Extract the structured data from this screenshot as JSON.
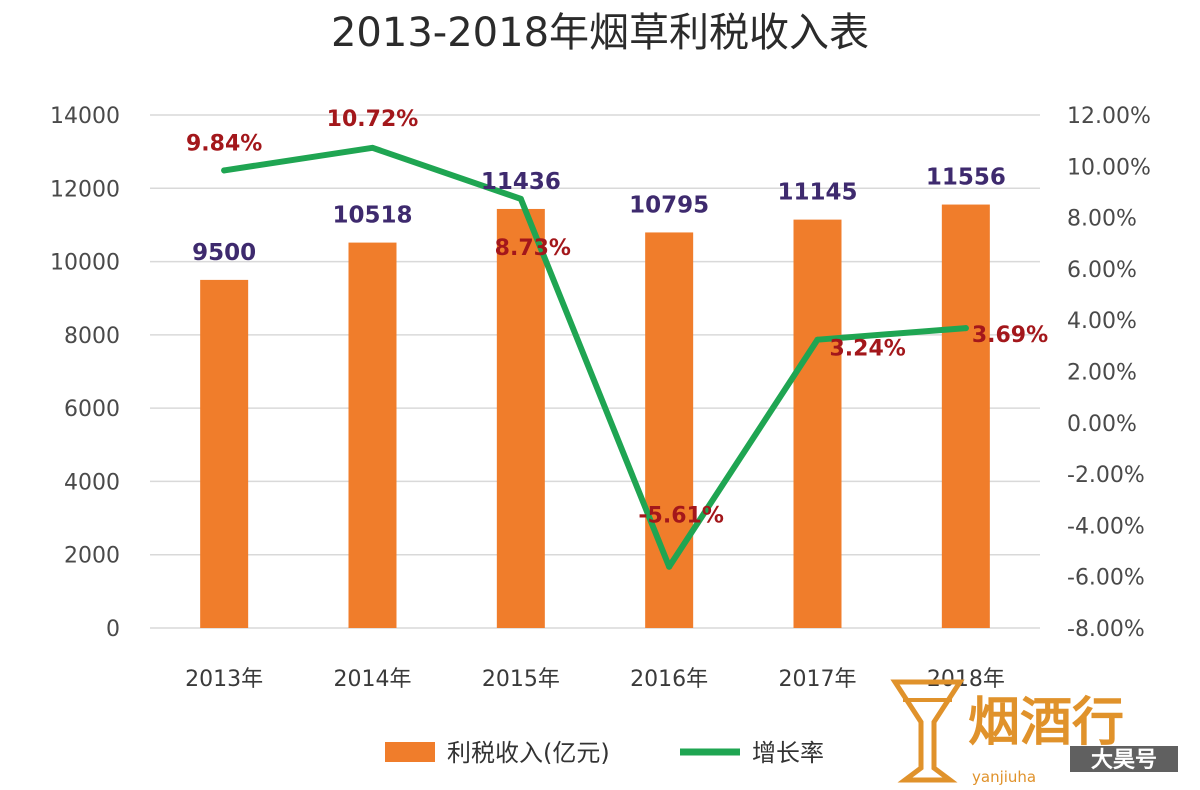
{
  "chart_data": {
    "type": "bar",
    "title": "2013-2018年烟草利税收入表",
    "categories": [
      "2013年",
      "2014年",
      "2015年",
      "2016年",
      "2017年",
      "2018年"
    ],
    "series": [
      {
        "name": "利税收入(亿元)",
        "type": "bar",
        "axis": "left",
        "color": "#f07d2b",
        "values": [
          9500,
          10518,
          11436,
          10795,
          11145,
          11556
        ],
        "labels": [
          "9500",
          "10518",
          "11436",
          "10795",
          "11145",
          "11556"
        ]
      },
      {
        "name": "增长率",
        "type": "line",
        "axis": "right",
        "color": "#1fa552",
        "values": [
          9.84,
          10.72,
          8.73,
          -5.61,
          3.24,
          3.69
        ],
        "labels": [
          "9.84%",
          "10.72%",
          "8.73%",
          "-5.61%",
          "3.24%",
          "3.69%"
        ]
      }
    ],
    "y_left": {
      "ylim": [
        0,
        14000
      ],
      "ticks": [
        "0",
        "2000",
        "4000",
        "6000",
        "8000",
        "10000",
        "12000",
        "14000"
      ]
    },
    "y_right": {
      "ylim": [
        -8,
        12
      ],
      "ticks": [
        "-8.00%",
        "-6.00%",
        "-4.00%",
        "-2.00%",
        "0.00%",
        "2.00%",
        "4.00%",
        "6.00%",
        "8.00%",
        "10.00%",
        "12.00%"
      ]
    },
    "grid": true,
    "legend_position": "bottom-center"
  },
  "watermark": {
    "big": "烟酒行",
    "small": "大昊号",
    "sub": "yanjiuha"
  }
}
